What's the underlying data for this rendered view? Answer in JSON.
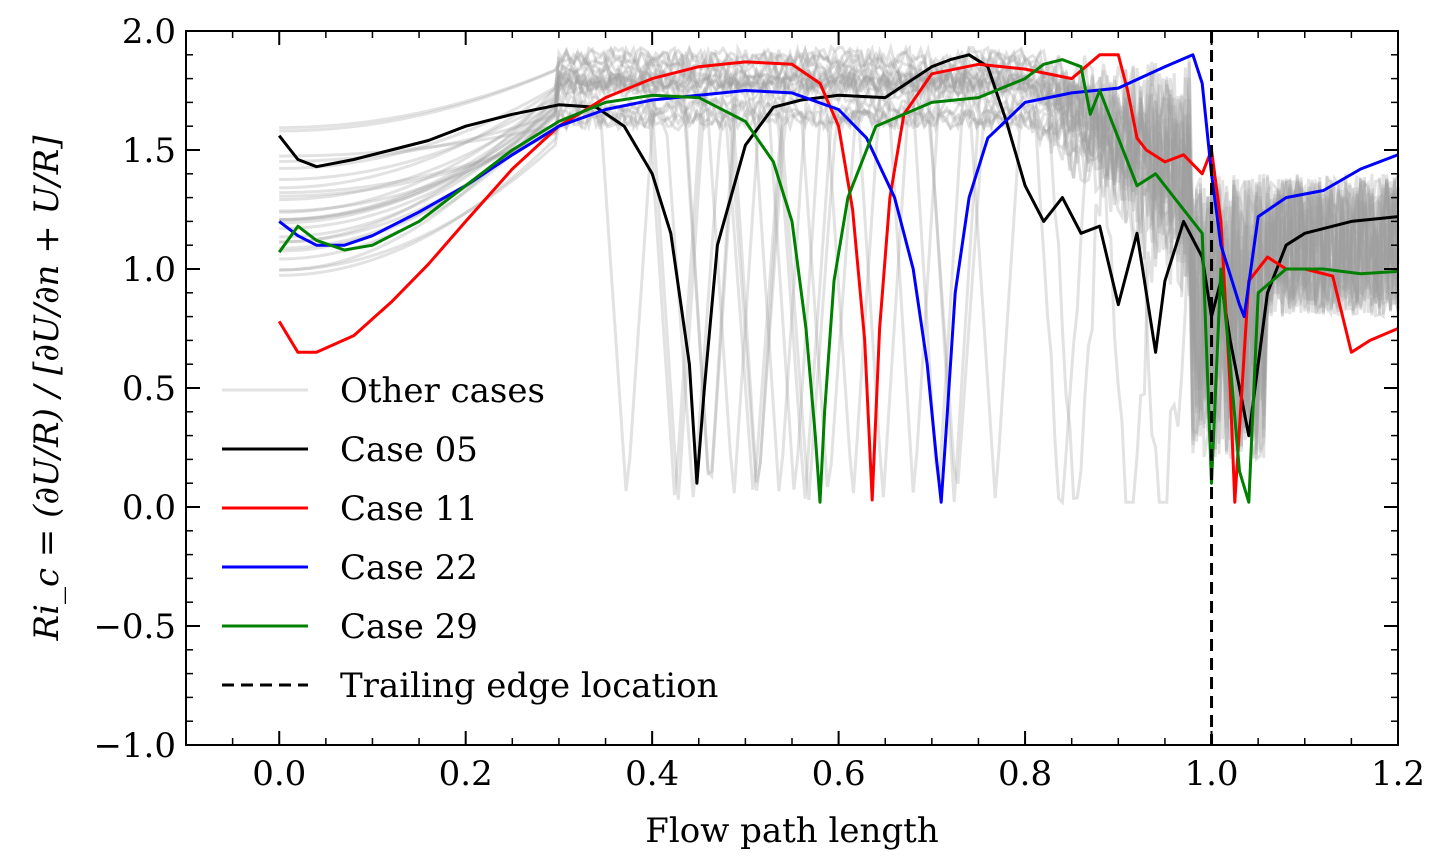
{
  "chart_data": {
    "type": "line",
    "xlabel": "Flow path length",
    "ylabel": "Ri_c = (∂U/R) / [∂U/∂n + U/R]",
    "xlim": [
      -0.1,
      1.2
    ],
    "ylim": [
      -1.0,
      2.0
    ],
    "x_ticks": [
      0.0,
      0.2,
      0.4,
      0.6,
      0.8,
      1.0,
      1.2
    ],
    "x_tick_labels": [
      "0.0",
      "0.2",
      "0.4",
      "0.6",
      "0.8",
      "1.0",
      "1.2"
    ],
    "y_ticks": [
      -1.0,
      -0.5,
      0.0,
      0.5,
      1.0,
      1.5,
      2.0
    ],
    "y_tick_labels": [
      "−1.0",
      "−0.5",
      "0.0",
      "0.5",
      "1.0",
      "1.5",
      "2.0"
    ],
    "legend_position": "lower-left",
    "series": [
      {
        "name": "Case 05",
        "color": "#000000",
        "x": [
          0.0,
          0.02,
          0.04,
          0.08,
          0.12,
          0.16,
          0.2,
          0.25,
          0.3,
          0.34,
          0.37,
          0.4,
          0.42,
          0.44,
          0.448,
          0.456,
          0.47,
          0.5,
          0.53,
          0.56,
          0.6,
          0.65,
          0.7,
          0.72,
          0.74,
          0.76,
          0.78,
          0.8,
          0.82,
          0.84,
          0.86,
          0.88,
          0.9,
          0.92,
          0.94,
          0.95,
          0.97,
          0.99,
          1.0,
          1.01,
          1.02,
          1.04,
          1.06,
          1.08,
          1.1,
          1.15,
          1.2
        ],
        "y": [
          1.56,
          1.46,
          1.43,
          1.46,
          1.5,
          1.54,
          1.6,
          1.65,
          1.69,
          1.68,
          1.6,
          1.4,
          1.15,
          0.6,
          0.1,
          0.5,
          1.1,
          1.52,
          1.68,
          1.71,
          1.73,
          1.72,
          1.85,
          1.88,
          1.9,
          1.85,
          1.62,
          1.35,
          1.2,
          1.3,
          1.15,
          1.18,
          0.85,
          1.15,
          0.65,
          0.95,
          1.2,
          1.05,
          0.8,
          0.95,
          0.7,
          0.3,
          0.9,
          1.1,
          1.15,
          1.2,
          1.22
        ]
      },
      {
        "name": "Case 11",
        "color": "#ff0000",
        "x": [
          0.0,
          0.02,
          0.04,
          0.08,
          0.12,
          0.16,
          0.2,
          0.25,
          0.3,
          0.35,
          0.4,
          0.45,
          0.5,
          0.55,
          0.58,
          0.6,
          0.615,
          0.628,
          0.636,
          0.644,
          0.655,
          0.67,
          0.7,
          0.75,
          0.8,
          0.85,
          0.88,
          0.9,
          0.91,
          0.92,
          0.93,
          0.95,
          0.97,
          0.99,
          1.0,
          1.01,
          1.02,
          1.025,
          1.04,
          1.06,
          1.08,
          1.1,
          1.13,
          1.15,
          1.17,
          1.2
        ],
        "y": [
          0.78,
          0.65,
          0.65,
          0.72,
          0.86,
          1.02,
          1.2,
          1.42,
          1.6,
          1.72,
          1.8,
          1.85,
          1.87,
          1.86,
          1.78,
          1.6,
          1.25,
          0.7,
          0.03,
          0.75,
          1.3,
          1.65,
          1.82,
          1.86,
          1.84,
          1.8,
          1.9,
          1.9,
          1.75,
          1.55,
          1.5,
          1.45,
          1.48,
          1.4,
          1.5,
          1.2,
          0.5,
          0.02,
          0.95,
          1.05,
          1.0,
          1.0,
          0.97,
          0.65,
          0.7,
          0.75
        ]
      },
      {
        "name": "Case 22",
        "color": "#0000ff",
        "x": [
          0.0,
          0.02,
          0.04,
          0.07,
          0.1,
          0.15,
          0.2,
          0.25,
          0.3,
          0.35,
          0.4,
          0.45,
          0.5,
          0.55,
          0.6,
          0.63,
          0.66,
          0.68,
          0.695,
          0.705,
          0.71,
          0.715,
          0.725,
          0.74,
          0.76,
          0.8,
          0.85,
          0.9,
          0.95,
          0.98,
          0.99,
          1.0,
          1.01,
          1.03,
          1.035,
          1.05,
          1.08,
          1.12,
          1.16,
          1.2
        ],
        "y": [
          1.2,
          1.14,
          1.1,
          1.1,
          1.14,
          1.24,
          1.35,
          1.48,
          1.6,
          1.67,
          1.71,
          1.73,
          1.75,
          1.74,
          1.67,
          1.55,
          1.3,
          1.0,
          0.6,
          0.2,
          0.02,
          0.3,
          0.9,
          1.3,
          1.55,
          1.7,
          1.74,
          1.76,
          1.85,
          1.9,
          1.78,
          1.4,
          1.1,
          0.85,
          0.8,
          1.22,
          1.3,
          1.33,
          1.42,
          1.48
        ]
      },
      {
        "name": "Case 29",
        "color": "#008000",
        "x": [
          0.0,
          0.02,
          0.04,
          0.07,
          0.1,
          0.15,
          0.2,
          0.25,
          0.3,
          0.35,
          0.4,
          0.45,
          0.5,
          0.53,
          0.55,
          0.565,
          0.575,
          0.58,
          0.585,
          0.595,
          0.61,
          0.64,
          0.7,
          0.75,
          0.8,
          0.82,
          0.84,
          0.86,
          0.87,
          0.88,
          0.9,
          0.92,
          0.94,
          0.96,
          0.98,
          0.99,
          1.0,
          1.01,
          1.02,
          1.03,
          1.04,
          1.05,
          1.08,
          1.12,
          1.16,
          1.2
        ],
        "y": [
          1.07,
          1.18,
          1.12,
          1.08,
          1.1,
          1.2,
          1.35,
          1.5,
          1.62,
          1.7,
          1.73,
          1.72,
          1.62,
          1.45,
          1.2,
          0.75,
          0.3,
          0.02,
          0.4,
          0.95,
          1.3,
          1.6,
          1.7,
          1.72,
          1.8,
          1.86,
          1.88,
          1.85,
          1.65,
          1.75,
          1.55,
          1.35,
          1.4,
          1.3,
          1.2,
          1.15,
          0.1,
          1.0,
          0.6,
          0.15,
          0.02,
          0.9,
          1.0,
          1.0,
          0.98,
          0.99
        ]
      }
    ],
    "background_series": {
      "name": "Other cases",
      "color": "#a0a0a0",
      "count": 26
    },
    "reference_line": {
      "name": "Trailing edge location",
      "x": 1.0,
      "style": "dashed",
      "color": "#000000"
    }
  }
}
